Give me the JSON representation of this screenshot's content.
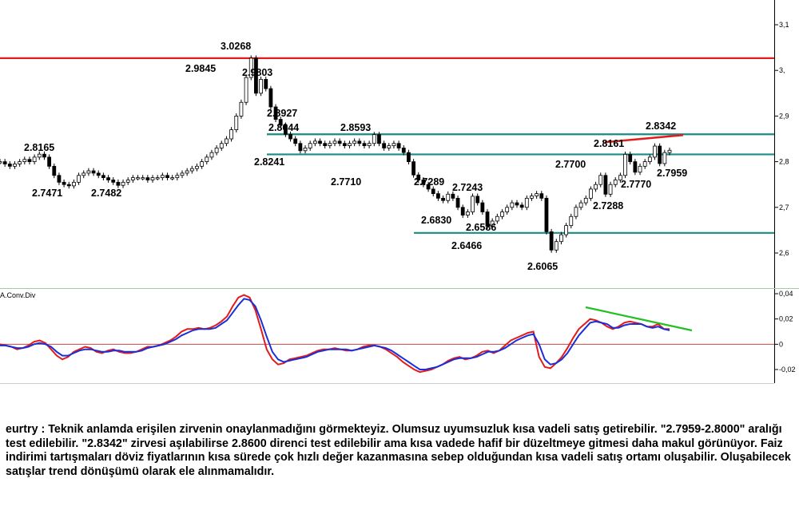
{
  "chart_data": [
    {
      "type": "candlestick",
      "symbol": "eurtry",
      "ylim": [
        2.55,
        3.13
      ],
      "y_ticks": [
        "3,1",
        "3,",
        "2,9",
        "2,8",
        "2,7",
        "2,6"
      ],
      "y_tick_values": [
        3.1,
        3.0,
        2.9,
        2.8,
        2.7,
        2.6
      ],
      "price_labels": [
        {
          "text": "3.0268",
          "value": 3.0268
        },
        {
          "text": "2.9845",
          "value": 2.9845
        },
        {
          "text": "2.9803",
          "value": 2.9803
        },
        {
          "text": "2.8927",
          "value": 2.8927
        },
        {
          "text": "2.8644",
          "value": 2.8644
        },
        {
          "text": "2.8593",
          "value": 2.8593
        },
        {
          "text": "2.8165",
          "value": 2.8165
        },
        {
          "text": "2.8241",
          "value": 2.8241
        },
        {
          "text": "2.7471",
          "value": 2.7471
        },
        {
          "text": "2.7482",
          "value": 2.7482
        },
        {
          "text": "2.7710",
          "value": 2.771
        },
        {
          "text": "2.7289",
          "value": 2.7289
        },
        {
          "text": "2.7243",
          "value": 2.7243
        },
        {
          "text": "2.6830",
          "value": 2.683
        },
        {
          "text": "2.6586",
          "value": 2.6586
        },
        {
          "text": "2.6466",
          "value": 2.6466
        },
        {
          "text": "2.6065",
          "value": 2.6065
        },
        {
          "text": "2.8342",
          "value": 2.8342
        },
        {
          "text": "2.8161",
          "value": 2.8161
        },
        {
          "text": "2.7700",
          "value": 2.77
        },
        {
          "text": "2.7959",
          "value": 2.7959
        },
        {
          "text": "2.7770",
          "value": 2.777
        },
        {
          "text": "2.7288",
          "value": 2.7288
        }
      ],
      "horizontal_levels": [
        {
          "value": 3.0268,
          "color": "#e21b1b"
        },
        {
          "value": 2.86,
          "color": "#1a8c84"
        },
        {
          "value": 2.816,
          "color": "#1a8c84"
        },
        {
          "value": 2.644,
          "color": "#1a8c84"
        }
      ],
      "trendline": {
        "from": 2.8165,
        "to": 2.86,
        "color": "#e21b1b"
      },
      "series": [
        {
          "values": [
            2.8,
            2.795,
            2.79,
            2.795,
            2.8,
            2.805,
            2.8,
            2.81,
            2.8165,
            2.81,
            2.79,
            2.77,
            2.755,
            2.75,
            2.7471,
            2.755,
            2.77,
            2.775,
            2.78,
            2.775,
            2.77,
            2.765,
            2.76,
            2.755,
            2.7482,
            2.755,
            2.76,
            2.765,
            2.765,
            2.765,
            2.76,
            2.765,
            2.765,
            2.77,
            2.765,
            2.765,
            2.77,
            2.775,
            2.78,
            2.785,
            2.79,
            2.8,
            2.81,
            2.82,
            2.83,
            2.84,
            2.85,
            2.87,
            2.9,
            2.93,
            2.9845,
            3.0268,
            2.95,
            2.9803,
            2.96,
            2.92,
            2.8927,
            2.88,
            2.86,
            2.85,
            2.84,
            2.8241,
            2.83,
            2.84,
            2.845,
            2.84,
            2.835,
            2.84,
            2.845,
            2.84,
            2.835,
            2.84,
            2.845,
            2.84,
            2.835,
            2.84,
            2.8593,
            2.84,
            2.83,
            2.835,
            2.84,
            2.83,
            2.82,
            2.8,
            2.771,
            2.76,
            2.75,
            2.74,
            2.73,
            2.72,
            2.715,
            2.7289,
            2.72,
            2.7,
            2.683,
            2.69,
            2.7243,
            2.71,
            2.69,
            2.6586,
            2.67,
            2.68,
            2.69,
            2.7,
            2.71,
            2.705,
            2.7,
            2.72,
            2.725,
            2.73,
            2.72,
            2.6466,
            2.6065,
            2.625,
            2.64,
            2.66,
            2.68,
            2.7,
            2.71,
            2.72,
            2.74,
            2.75,
            2.77,
            2.7288,
            2.75,
            2.76,
            2.77,
            2.8161,
            2.8,
            2.777,
            2.79,
            2.8,
            2.81,
            2.8342,
            2.7959,
            2.82,
            2.825
          ]
        }
      ]
    },
    {
      "type": "line",
      "title": "A.Conv.Div",
      "ylim": [
        -0.027,
        0.044
      ],
      "y_ticks": [
        "0,04",
        "0,02",
        "0",
        "-0,02"
      ],
      "y_tick_values": [
        0.04,
        0.02,
        0.0,
        -0.02
      ],
      "zero_line_color": "#b03030",
      "trendline": {
        "color": "#22c022"
      },
      "series": [
        {
          "color": "#e21b1b",
          "values": [
            0.0,
            -0.001,
            -0.002,
            -0.004,
            -0.003,
            -0.001,
            0.002,
            0.003,
            0.001,
            -0.004,
            -0.009,
            -0.012,
            -0.01,
            -0.006,
            -0.004,
            -0.002,
            -0.003,
            -0.006,
            -0.007,
            -0.005,
            -0.004,
            -0.006,
            -0.007,
            -0.007,
            -0.006,
            -0.004,
            -0.002,
            -0.002,
            -0.001,
            0.001,
            0.003,
            0.006,
            0.01,
            0.012,
            0.012,
            0.013,
            0.012,
            0.013,
            0.015,
            0.018,
            0.022,
            0.03,
            0.037,
            0.039,
            0.037,
            0.027,
            0.012,
            -0.004,
            -0.012,
            -0.016,
            -0.015,
            -0.012,
            -0.011,
            -0.01,
            -0.009,
            -0.007,
            -0.005,
            -0.004,
            -0.004,
            -0.003,
            -0.004,
            -0.005,
            -0.005,
            -0.004,
            -0.002,
            -0.001,
            -0.001,
            -0.002,
            -0.004,
            -0.007,
            -0.01,
            -0.014,
            -0.017,
            -0.02,
            -0.022,
            -0.021,
            -0.02,
            -0.018,
            -0.016,
            -0.013,
            -0.011,
            -0.01,
            -0.012,
            -0.011,
            -0.009,
            -0.006,
            -0.005,
            -0.007,
            -0.005,
            -0.001,
            0.003,
            0.005,
            0.007,
            0.009,
            0.01,
            -0.01,
            -0.018,
            -0.019,
            -0.015,
            -0.01,
            -0.003,
            0.005,
            0.012,
            0.016,
            0.02,
            0.019,
            0.017,
            0.014,
            0.012,
            0.014,
            0.017,
            0.018,
            0.017,
            0.016,
            0.014,
            0.014,
            0.016,
            0.012,
            0.012
          ]
        },
        {
          "color": "#1a2fd9",
          "values": [
            -0.001,
            -0.001,
            -0.002,
            -0.003,
            -0.003,
            -0.002,
            0.0,
            0.001,
            0.0,
            -0.002,
            -0.006,
            -0.009,
            -0.009,
            -0.007,
            -0.005,
            -0.004,
            -0.004,
            -0.005,
            -0.006,
            -0.006,
            -0.005,
            -0.005,
            -0.006,
            -0.006,
            -0.006,
            -0.005,
            -0.003,
            -0.002,
            -0.001,
            0.0,
            0.002,
            0.004,
            0.007,
            0.009,
            0.011,
            0.012,
            0.012,
            0.012,
            0.013,
            0.016,
            0.019,
            0.025,
            0.031,
            0.036,
            0.035,
            0.03,
            0.019,
            0.006,
            -0.006,
            -0.012,
            -0.014,
            -0.013,
            -0.012,
            -0.011,
            -0.01,
            -0.008,
            -0.006,
            -0.005,
            -0.004,
            -0.004,
            -0.004,
            -0.004,
            -0.005,
            -0.004,
            -0.003,
            -0.002,
            -0.001,
            -0.002,
            -0.003,
            -0.005,
            -0.008,
            -0.011,
            -0.014,
            -0.017,
            -0.02,
            -0.02,
            -0.019,
            -0.018,
            -0.016,
            -0.014,
            -0.012,
            -0.011,
            -0.011,
            -0.011,
            -0.01,
            -0.008,
            -0.006,
            -0.006,
            -0.005,
            -0.003,
            0.0,
            0.003,
            0.005,
            0.007,
            0.008,
            0.0,
            -0.012,
            -0.016,
            -0.015,
            -0.012,
            -0.007,
            0.0,
            0.007,
            0.012,
            0.017,
            0.018,
            0.017,
            0.016,
            0.013,
            0.013,
            0.015,
            0.016,
            0.016,
            0.016,
            0.014,
            0.013,
            0.014,
            0.012,
            0.011
          ]
        }
      ]
    }
  ],
  "commentary": "eurtry : Teknik anlamda erişilen zirvenin onaylanmadığını görmekteyiz. Olumsuz uyumsuzluk kısa vadeli satış getirebilir. \"2.7959-2.8000\" aralığı test edilebilir. \"2.8342\" zirvesi aşılabilirse 2.8600 direnci test edilebilir ama kısa vadede hafif bir düzeltmeye gitmesi daha makul görünüyor. Faiz indirimi tartışmaları döviz fiyatlarının kısa sürede çok hızlı değer kazanmasına sebep olduğundan kısa vadeli satış ortamı oluşabilir. Oluşabilecek satışlar trend dönüşümü olarak ele alınmamalıdır."
}
